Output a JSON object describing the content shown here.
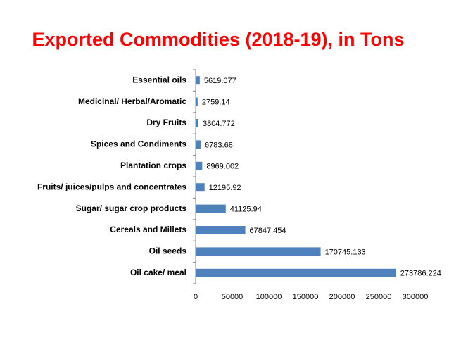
{
  "chart_data": {
    "type": "bar",
    "orientation": "horizontal",
    "title": "Exported Commodities (2018-19), in Tons",
    "categories": [
      "Essential oils",
      "Medicinal/ Herbal/Aromatic",
      "Dry Fruits",
      "Spices and Condiments",
      "Plantation crops",
      "Fruits/ juices/pulps and concentrates",
      "Sugar/ sugar crop products",
      "Cereals and Millets",
      "Oil seeds",
      "Oil cake/ meal"
    ],
    "values": [
      5619.077,
      2759.14,
      3804.772,
      6783.68,
      8969.002,
      12195.92,
      41125.94,
      67847.454,
      170745.133,
      273786.224
    ],
    "color": "#4f81bd",
    "xlim": [
      0,
      300000
    ],
    "xticks": [
      0,
      50000,
      100000,
      150000,
      200000,
      250000,
      300000
    ],
    "grid": false
  }
}
